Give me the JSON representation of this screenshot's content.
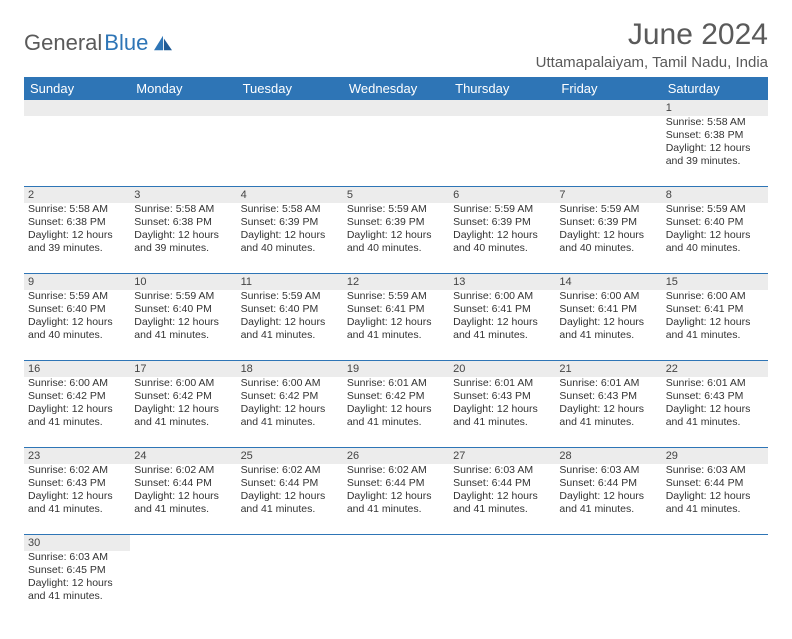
{
  "colors": {
    "header_bg": "#2e75b6",
    "header_fg": "#ffffff",
    "daynum_bg": "#ececec",
    "border": "#2e75b6",
    "text": "#333333",
    "title": "#5a5a5a"
  },
  "logo": {
    "text1": "General",
    "text2": "Blue"
  },
  "title": "June 2024",
  "location": "Uttamapalaiyam, Tamil Nadu, India",
  "day_headers": [
    "Sunday",
    "Monday",
    "Tuesday",
    "Wednesday",
    "Thursday",
    "Friday",
    "Saturday"
  ],
  "weeks": [
    [
      null,
      null,
      null,
      null,
      null,
      null,
      {
        "n": "1",
        "sr": "Sunrise: 5:58 AM",
        "ss": "Sunset: 6:38 PM",
        "d1": "Daylight: 12 hours",
        "d2": "and 39 minutes."
      }
    ],
    [
      {
        "n": "2",
        "sr": "Sunrise: 5:58 AM",
        "ss": "Sunset: 6:38 PM",
        "d1": "Daylight: 12 hours",
        "d2": "and 39 minutes."
      },
      {
        "n": "3",
        "sr": "Sunrise: 5:58 AM",
        "ss": "Sunset: 6:38 PM",
        "d1": "Daylight: 12 hours",
        "d2": "and 39 minutes."
      },
      {
        "n": "4",
        "sr": "Sunrise: 5:58 AM",
        "ss": "Sunset: 6:39 PM",
        "d1": "Daylight: 12 hours",
        "d2": "and 40 minutes."
      },
      {
        "n": "5",
        "sr": "Sunrise: 5:59 AM",
        "ss": "Sunset: 6:39 PM",
        "d1": "Daylight: 12 hours",
        "d2": "and 40 minutes."
      },
      {
        "n": "6",
        "sr": "Sunrise: 5:59 AM",
        "ss": "Sunset: 6:39 PM",
        "d1": "Daylight: 12 hours",
        "d2": "and 40 minutes."
      },
      {
        "n": "7",
        "sr": "Sunrise: 5:59 AM",
        "ss": "Sunset: 6:39 PM",
        "d1": "Daylight: 12 hours",
        "d2": "and 40 minutes."
      },
      {
        "n": "8",
        "sr": "Sunrise: 5:59 AM",
        "ss": "Sunset: 6:40 PM",
        "d1": "Daylight: 12 hours",
        "d2": "and 40 minutes."
      }
    ],
    [
      {
        "n": "9",
        "sr": "Sunrise: 5:59 AM",
        "ss": "Sunset: 6:40 PM",
        "d1": "Daylight: 12 hours",
        "d2": "and 40 minutes."
      },
      {
        "n": "10",
        "sr": "Sunrise: 5:59 AM",
        "ss": "Sunset: 6:40 PM",
        "d1": "Daylight: 12 hours",
        "d2": "and 41 minutes."
      },
      {
        "n": "11",
        "sr": "Sunrise: 5:59 AM",
        "ss": "Sunset: 6:40 PM",
        "d1": "Daylight: 12 hours",
        "d2": "and 41 minutes."
      },
      {
        "n": "12",
        "sr": "Sunrise: 5:59 AM",
        "ss": "Sunset: 6:41 PM",
        "d1": "Daylight: 12 hours",
        "d2": "and 41 minutes."
      },
      {
        "n": "13",
        "sr": "Sunrise: 6:00 AM",
        "ss": "Sunset: 6:41 PM",
        "d1": "Daylight: 12 hours",
        "d2": "and 41 minutes."
      },
      {
        "n": "14",
        "sr": "Sunrise: 6:00 AM",
        "ss": "Sunset: 6:41 PM",
        "d1": "Daylight: 12 hours",
        "d2": "and 41 minutes."
      },
      {
        "n": "15",
        "sr": "Sunrise: 6:00 AM",
        "ss": "Sunset: 6:41 PM",
        "d1": "Daylight: 12 hours",
        "d2": "and 41 minutes."
      }
    ],
    [
      {
        "n": "16",
        "sr": "Sunrise: 6:00 AM",
        "ss": "Sunset: 6:42 PM",
        "d1": "Daylight: 12 hours",
        "d2": "and 41 minutes."
      },
      {
        "n": "17",
        "sr": "Sunrise: 6:00 AM",
        "ss": "Sunset: 6:42 PM",
        "d1": "Daylight: 12 hours",
        "d2": "and 41 minutes."
      },
      {
        "n": "18",
        "sr": "Sunrise: 6:00 AM",
        "ss": "Sunset: 6:42 PM",
        "d1": "Daylight: 12 hours",
        "d2": "and 41 minutes."
      },
      {
        "n": "19",
        "sr": "Sunrise: 6:01 AM",
        "ss": "Sunset: 6:42 PM",
        "d1": "Daylight: 12 hours",
        "d2": "and 41 minutes."
      },
      {
        "n": "20",
        "sr": "Sunrise: 6:01 AM",
        "ss": "Sunset: 6:43 PM",
        "d1": "Daylight: 12 hours",
        "d2": "and 41 minutes."
      },
      {
        "n": "21",
        "sr": "Sunrise: 6:01 AM",
        "ss": "Sunset: 6:43 PM",
        "d1": "Daylight: 12 hours",
        "d2": "and 41 minutes."
      },
      {
        "n": "22",
        "sr": "Sunrise: 6:01 AM",
        "ss": "Sunset: 6:43 PM",
        "d1": "Daylight: 12 hours",
        "d2": "and 41 minutes."
      }
    ],
    [
      {
        "n": "23",
        "sr": "Sunrise: 6:02 AM",
        "ss": "Sunset: 6:43 PM",
        "d1": "Daylight: 12 hours",
        "d2": "and 41 minutes."
      },
      {
        "n": "24",
        "sr": "Sunrise: 6:02 AM",
        "ss": "Sunset: 6:44 PM",
        "d1": "Daylight: 12 hours",
        "d2": "and 41 minutes."
      },
      {
        "n": "25",
        "sr": "Sunrise: 6:02 AM",
        "ss": "Sunset: 6:44 PM",
        "d1": "Daylight: 12 hours",
        "d2": "and 41 minutes."
      },
      {
        "n": "26",
        "sr": "Sunrise: 6:02 AM",
        "ss": "Sunset: 6:44 PM",
        "d1": "Daylight: 12 hours",
        "d2": "and 41 minutes."
      },
      {
        "n": "27",
        "sr": "Sunrise: 6:03 AM",
        "ss": "Sunset: 6:44 PM",
        "d1": "Daylight: 12 hours",
        "d2": "and 41 minutes."
      },
      {
        "n": "28",
        "sr": "Sunrise: 6:03 AM",
        "ss": "Sunset: 6:44 PM",
        "d1": "Daylight: 12 hours",
        "d2": "and 41 minutes."
      },
      {
        "n": "29",
        "sr": "Sunrise: 6:03 AM",
        "ss": "Sunset: 6:44 PM",
        "d1": "Daylight: 12 hours",
        "d2": "and 41 minutes."
      }
    ],
    [
      {
        "n": "30",
        "sr": "Sunrise: 6:03 AM",
        "ss": "Sunset: 6:45 PM",
        "d1": "Daylight: 12 hours",
        "d2": "and 41 minutes."
      },
      null,
      null,
      null,
      null,
      null,
      null
    ]
  ]
}
